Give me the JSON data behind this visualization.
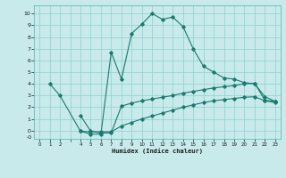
{
  "xlabel": "Humidex (Indice chaleur)",
  "background_color": "#c8eaea",
  "grid_color": "#8ecfcf",
  "line_color": "#1a7a6e",
  "xlim": [
    -0.5,
    23.5
  ],
  "ylim": [
    -0.7,
    10.7
  ],
  "xticks": [
    0,
    1,
    2,
    3,
    4,
    5,
    6,
    7,
    8,
    9,
    10,
    11,
    12,
    13,
    14,
    15,
    16,
    17,
    18,
    19,
    20,
    21,
    22,
    23
  ],
  "xtick_labels": [
    "0",
    "1",
    "2",
    "",
    "4",
    "5",
    "6",
    "7",
    "8",
    "9",
    "10",
    "11",
    "12",
    "13",
    "14",
    "15",
    "16",
    "17",
    "18",
    "19",
    "20",
    "21",
    "22",
    "23"
  ],
  "yticks": [
    0,
    1,
    2,
    3,
    4,
    5,
    6,
    7,
    8,
    9,
    10
  ],
  "ytick_labels": [
    "0",
    "1",
    "2",
    "3",
    "4",
    "5",
    "6",
    "7",
    "8",
    "9",
    "10"
  ],
  "line1_x": [
    1,
    2,
    4,
    5,
    6,
    7,
    8,
    9,
    10,
    11,
    12,
    13,
    14,
    15,
    16,
    17,
    18,
    19,
    20,
    21,
    22,
    23
  ],
  "line1_y": [
    4.0,
    3.0,
    -0.05,
    -0.3,
    -0.3,
    6.7,
    4.4,
    8.3,
    9.1,
    10.0,
    9.5,
    9.7,
    8.9,
    7.0,
    5.5,
    5.0,
    4.5,
    4.4,
    4.1,
    4.0,
    2.9,
    2.5
  ],
  "line2_x": [
    4,
    5,
    6,
    7,
    8,
    9,
    10,
    11,
    12,
    13,
    14,
    15,
    16,
    17,
    18,
    19,
    20,
    21,
    22,
    23
  ],
  "line2_y": [
    1.3,
    -0.05,
    -0.2,
    -0.2,
    2.1,
    2.35,
    2.55,
    2.7,
    2.85,
    3.0,
    3.2,
    3.35,
    3.5,
    3.65,
    3.75,
    3.85,
    4.0,
    4.05,
    2.6,
    2.5
  ],
  "line3_x": [
    4,
    5,
    6,
    7,
    8,
    9,
    10,
    11,
    12,
    13,
    14,
    15,
    16,
    17,
    18,
    19,
    20,
    21,
    22,
    23
  ],
  "line3_y": [
    -0.05,
    -0.1,
    -0.1,
    -0.1,
    0.4,
    0.7,
    1.0,
    1.25,
    1.5,
    1.75,
    2.0,
    2.2,
    2.4,
    2.55,
    2.65,
    2.75,
    2.85,
    2.9,
    2.55,
    2.4
  ]
}
